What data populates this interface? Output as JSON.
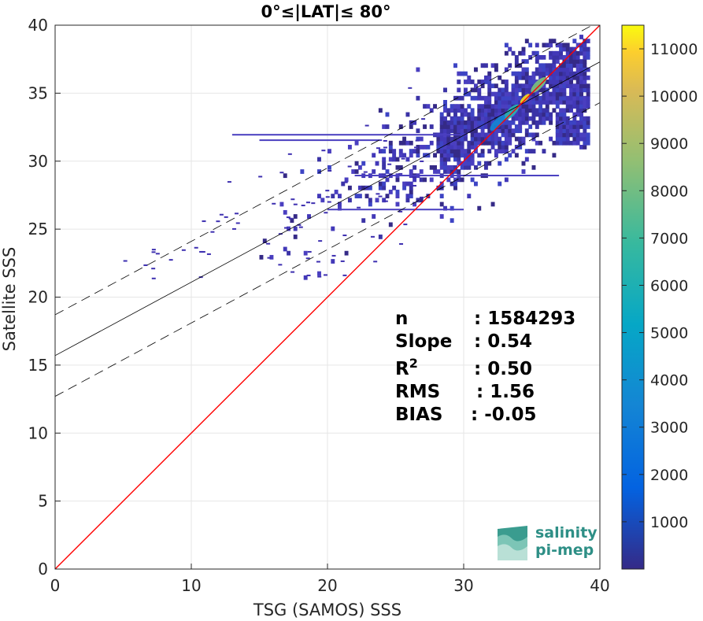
{
  "chart_data": {
    "type": "scatter",
    "title": "0°≤|LAT|≤ 80°",
    "xlabel": "TSG (SAMOS) SSS",
    "ylabel": "Satellite SSS",
    "xlim": [
      0,
      40
    ],
    "ylim": [
      0,
      40
    ],
    "xticks": [
      0,
      10,
      20,
      30,
      40
    ],
    "yticks": [
      0,
      5,
      10,
      15,
      20,
      25,
      30,
      35,
      40
    ],
    "grid": true,
    "reference_lines": {
      "one_to_one": {
        "slope": 1,
        "intercept": 0,
        "color": "#ff0000"
      },
      "fit": {
        "slope": 0.54,
        "intercept": 15.7,
        "color": "#000000"
      },
      "fit_plus": {
        "slope": 0.54,
        "intercept": 18.7,
        "style": "dashed"
      },
      "fit_minus": {
        "slope": 0.54,
        "intercept": 12.7,
        "style": "dashed"
      }
    },
    "density_core": [
      {
        "x": 34.5,
        "y": 34.6,
        "value": 11000
      },
      {
        "x": 33.5,
        "y": 33.6,
        "value": 6000
      },
      {
        "x": 35.5,
        "y": 35.6,
        "value": 8000
      },
      {
        "x": 32.5,
        "y": 32.8,
        "value": 2500
      }
    ],
    "stats": [
      {
        "label": "n",
        "value": ": 1584293"
      },
      {
        "label": "Slope",
        "value": ": 0.54"
      },
      {
        "label": "R",
        "sup": "2",
        "value": ": 0.50"
      },
      {
        "label": "RMS",
        "value": ": 1.56"
      },
      {
        "label": "BIAS",
        "value": ": -0.05"
      }
    ],
    "colorbar": {
      "min": 0,
      "max": 11500,
      "ticks": [
        "1000",
        "2000",
        "3000",
        "4000",
        "5000",
        "6000",
        "7000",
        "8000",
        "9000",
        "10000",
        "11000"
      ]
    }
  },
  "logo": {
    "line1": "salinity",
    "line2": "pi-mep"
  }
}
